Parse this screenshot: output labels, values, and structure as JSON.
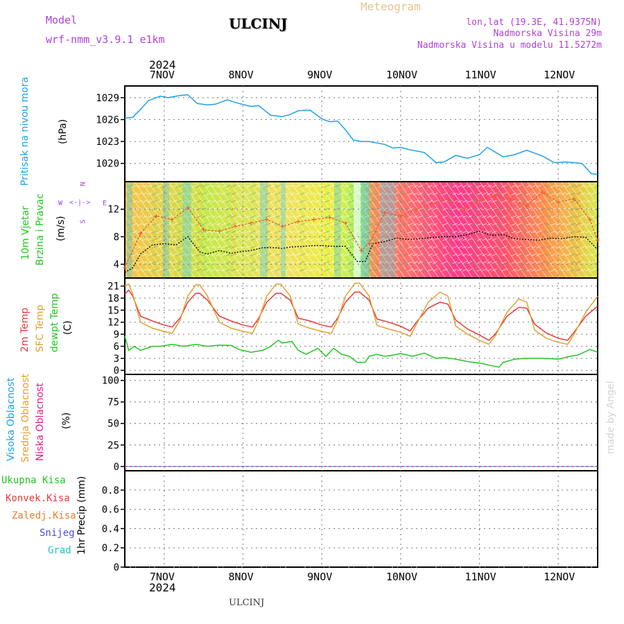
{
  "header": {
    "model_label": "Model",
    "model_name": "wrf-nmm_v3.9.1 e1km",
    "station": "ULCINJ",
    "meteogram_label": "Meteogram",
    "lonlat": "lon,lat (19.3E, 41.9375N)",
    "altitude": "Nadmorska Visina 29m",
    "model_altitude": "Nadmorska Visina u modelu 11.5272m",
    "year_top": "2024",
    "year_bottom": "2024",
    "footer_station": "ULCINJ",
    "watermark": "made by Angel"
  },
  "colors": {
    "pressure": "#1ea0e6",
    "wind_speed": "#000000",
    "gust": "#e85a2a",
    "temp2m": "#e83a3a",
    "sfc_temp": "#e0a030",
    "dewpoint": "#22c522",
    "purple": "#b040d8"
  },
  "panel_labels": {
    "pressure": {
      "title": "Pritisak na nivou mora",
      "unit": "(hPa)"
    },
    "wind": {
      "title1": "10m Vjetar",
      "title2": "Brzina i Pravac",
      "unit": "(m/s)",
      "compass_n": "N",
      "compass_s": "S",
      "compass_w": "W",
      "compass_e": "E"
    },
    "temp": {
      "t1": "2m Temp",
      "t2": "SFC Temp",
      "t3": "dewpt Temp",
      "unit": "(C)"
    },
    "cloud": {
      "c1": "Visoka Oblacnost",
      "c2": "Srednja Oblacnost",
      "c3": "Niska Oblacnost",
      "unit": "(%)"
    },
    "precip": {
      "p1": "Ukupna Kisa",
      "p2": "Konvek.Kisa",
      "p3": "Zaledj.Kisa",
      "p4": "Snijeg",
      "p5": "Grad",
      "unit": "1hr Precip (mm)"
    }
  },
  "chart_data": [
    {
      "type": "line",
      "name": "pressure",
      "x_categories": [
        "7NOV",
        "8NOV",
        "9NOV",
        "10NOV",
        "11NOV",
        "12NOV"
      ],
      "x_range_days": [
        6.5,
        12.5
      ],
      "ylim": [
        1017.5,
        1030.6
      ],
      "yticks": [
        1020,
        1023,
        1026,
        1029
      ],
      "series": [
        {
          "x": [
            6.5,
            6.6,
            6.7,
            6.8,
            6.95,
            7.05,
            7.2,
            7.3,
            7.42,
            7.55,
            7.65,
            7.8,
            7.95,
            8.1,
            8.2,
            8.35,
            8.5,
            8.6,
            8.7,
            8.85,
            9.0,
            9.1,
            9.2,
            9.3,
            9.4,
            9.5,
            9.6,
            9.7,
            9.8,
            9.9,
            10.0,
            10.1,
            10.3,
            10.45,
            10.55,
            10.7,
            10.85,
            11.0,
            11.1,
            11.3,
            11.45,
            11.6,
            11.8,
            11.95,
            12.1,
            12.3,
            12.42,
            12.5
          ],
          "y": [
            1026.2,
            1026.3,
            1027.4,
            1028.6,
            1029.2,
            1029.0,
            1029.3,
            1029.4,
            1028.2,
            1028.0,
            1028.1,
            1028.7,
            1028.2,
            1027.8,
            1027.9,
            1026.6,
            1026.4,
            1026.7,
            1027.2,
            1027.3,
            1026.1,
            1025.7,
            1025.8,
            1024.6,
            1023.2,
            1023.0,
            1023.0,
            1022.8,
            1022.6,
            1022.1,
            1022.2,
            1021.9,
            1021.5,
            1020.1,
            1020.2,
            1021.1,
            1020.7,
            1021.2,
            1022.2,
            1020.9,
            1021.2,
            1021.8,
            1021.0,
            1020.1,
            1020.2,
            1020.0,
            1018.6,
            1018.5
          ]
        }
      ]
    },
    {
      "type": "line",
      "name": "wind",
      "x_range_days": [
        6.5,
        12.5
      ],
      "ylim": [
        2,
        16
      ],
      "yticks": [
        4,
        8,
        12
      ],
      "series": [
        {
          "name": "speed",
          "x": [
            6.5,
            6.6,
            6.7,
            6.85,
            7.0,
            7.15,
            7.3,
            7.45,
            7.55,
            7.7,
            7.85,
            7.95,
            8.1,
            8.25,
            8.4,
            8.5,
            8.6,
            8.75,
            8.9,
            9.0,
            9.15,
            9.3,
            9.45,
            9.55,
            9.65,
            9.8,
            9.95,
            10.1,
            10.25,
            10.4,
            10.55,
            10.7,
            10.85,
            11.0,
            11.15,
            11.3,
            11.45,
            11.6,
            11.75,
            11.9,
            12.05,
            12.2,
            12.35,
            12.5
          ],
          "y": [
            2.8,
            3.5,
            5.5,
            6.8,
            7.0,
            6.8,
            8.0,
            5.8,
            5.5,
            6.0,
            5.6,
            5.8,
            6.0,
            6.4,
            6.4,
            6.3,
            6.5,
            6.6,
            6.7,
            6.7,
            6.6,
            6.6,
            4.4,
            4.4,
            7.0,
            7.3,
            7.8,
            7.6,
            7.7,
            7.9,
            8.0,
            8.0,
            8.3,
            8.8,
            8.2,
            8.3,
            7.7,
            7.6,
            7.5,
            7.8,
            7.7,
            8.0,
            7.9,
            6.1
          ]
        },
        {
          "name": "gust",
          "x": [
            6.5,
            6.7,
            6.9,
            7.1,
            7.3,
            7.5,
            7.7,
            7.9,
            8.1,
            8.3,
            8.5,
            8.7,
            8.9,
            9.1,
            9.3,
            9.5,
            9.6,
            9.8,
            10.0,
            10.2,
            10.4,
            10.6,
            10.8,
            11.0,
            11.2,
            11.4,
            11.6,
            11.8,
            12.0,
            12.2,
            12.4,
            12.5
          ],
          "y": [
            3.5,
            8.5,
            11.0,
            10.5,
            12.2,
            9.0,
            8.8,
            9.5,
            10.0,
            10.5,
            9.5,
            10.2,
            10.5,
            10.8,
            10.0,
            6.0,
            7.0,
            11.5,
            11.0,
            12.0,
            12.8,
            13.5,
            12.0,
            13.2,
            14.0,
            13.5,
            12.5,
            14.5,
            13.0,
            13.5,
            10.5,
            7.5
          ]
        }
      ]
    },
    {
      "type": "line",
      "name": "temperature",
      "x_range_days": [
        6.5,
        12.5
      ],
      "ylim": [
        -1,
        23
      ],
      "yticks": [
        0,
        3,
        6,
        9,
        12,
        15,
        18,
        21
      ],
      "series": [
        {
          "name": "2m",
          "x": [
            6.5,
            6.55,
            6.6,
            6.7,
            6.85,
            7.0,
            7.1,
            7.2,
            7.3,
            7.4,
            7.45,
            7.55,
            7.7,
            7.85,
            8.0,
            8.12,
            8.2,
            8.3,
            8.42,
            8.48,
            8.6,
            8.7,
            8.85,
            9.0,
            9.12,
            9.2,
            9.3,
            9.42,
            9.48,
            9.6,
            9.7,
            9.85,
            10.0,
            10.12,
            10.2,
            10.35,
            10.5,
            10.6,
            10.7,
            10.85,
            11.0,
            11.12,
            11.2,
            11.35,
            11.5,
            11.6,
            11.7,
            11.85,
            12.0,
            12.12,
            12.2,
            12.35,
            12.5
          ],
          "y": [
            19.0,
            20.0,
            18.5,
            13.5,
            12.3,
            11.3,
            10.8,
            13.0,
            17.0,
            19.2,
            19.2,
            17.5,
            13.5,
            12.3,
            11.3,
            10.8,
            13.0,
            17.0,
            19.2,
            19.2,
            17.5,
            13.0,
            12.3,
            11.3,
            10.8,
            13.0,
            17.0,
            19.5,
            19.5,
            17.5,
            12.8,
            12.0,
            11.0,
            9.8,
            12.0,
            15.5,
            17.0,
            16.5,
            12.5,
            10.3,
            8.8,
            7.5,
            9.0,
            13.5,
            15.7,
            15.5,
            11.5,
            9.3,
            8.0,
            7.5,
            9.5,
            13.5,
            16.0
          ]
        },
        {
          "name": "SFC",
          "x": [
            6.5,
            6.55,
            6.6,
            6.7,
            6.85,
            7.0,
            7.1,
            7.2,
            7.3,
            7.4,
            7.45,
            7.55,
            7.7,
            7.85,
            8.0,
            8.12,
            8.2,
            8.3,
            8.42,
            8.48,
            8.6,
            8.7,
            8.85,
            9.0,
            9.12,
            9.2,
            9.3,
            9.42,
            9.48,
            9.6,
            9.7,
            9.85,
            10.0,
            10.12,
            10.2,
            10.35,
            10.5,
            10.6,
            10.7,
            10.85,
            11.0,
            11.12,
            11.2,
            11.35,
            11.5,
            11.6,
            11.7,
            11.85,
            12.0,
            12.12,
            12.2,
            12.35,
            12.5
          ],
          "y": [
            21.0,
            21.5,
            19.0,
            12.0,
            10.5,
            9.7,
            9.2,
            12.5,
            18.5,
            21.3,
            21.3,
            18.5,
            12.0,
            10.5,
            9.7,
            9.2,
            12.5,
            18.5,
            21.5,
            21.5,
            18.5,
            11.5,
            10.5,
            9.7,
            9.2,
            12.5,
            18.5,
            21.7,
            21.7,
            18.5,
            11.2,
            10.3,
            9.5,
            8.5,
            11.5,
            17.0,
            19.5,
            18.5,
            11.0,
            9.0,
            7.5,
            6.5,
            8.5,
            14.5,
            17.8,
            17.0,
            10.0,
            8.0,
            7.0,
            6.5,
            9.0,
            14.5,
            18.5
          ]
        },
        {
          "name": "dewpt",
          "x": [
            6.5,
            6.55,
            6.62,
            6.7,
            6.85,
            6.95,
            7.1,
            7.25,
            7.4,
            7.55,
            7.7,
            7.85,
            7.95,
            8.1,
            8.25,
            8.35,
            8.45,
            8.5,
            8.62,
            8.7,
            8.8,
            8.95,
            9.05,
            9.15,
            9.25,
            9.35,
            9.45,
            9.55,
            9.6,
            9.7,
            9.8,
            9.9,
            10.0,
            10.15,
            10.3,
            10.45,
            10.55,
            10.7,
            10.85,
            11.0,
            11.15,
            11.25,
            11.3,
            11.45,
            11.6,
            11.8,
            12.0,
            12.15,
            12.25,
            12.4,
            12.5
          ],
          "y": [
            8.5,
            5.0,
            6.0,
            5.0,
            6.0,
            6.0,
            6.5,
            6.0,
            6.5,
            6.0,
            6.3,
            6.2,
            5.2,
            4.5,
            5.0,
            6.0,
            7.5,
            6.8,
            7.2,
            5.0,
            4.0,
            5.5,
            3.5,
            5.5,
            4.0,
            3.5,
            2.0,
            2.0,
            3.5,
            4.0,
            3.5,
            3.8,
            4.2,
            3.5,
            4.3,
            3.0,
            3.2,
            2.8,
            2.2,
            1.8,
            1.2,
            0.8,
            2.0,
            2.8,
            3.0,
            3.0,
            2.8,
            3.5,
            3.8,
            5.2,
            4.5
          ]
        }
      ]
    },
    {
      "type": "line",
      "name": "cloud",
      "ylim": [
        -5,
        107
      ],
      "yticks": [
        0,
        25,
        50,
        75,
        100
      ],
      "series": [
        {
          "name": "high",
          "values": [
            0,
            0
          ]
        },
        {
          "name": "mid",
          "values": [
            0,
            0
          ]
        },
        {
          "name": "low",
          "values": [
            0,
            0
          ]
        }
      ]
    },
    {
      "type": "bar",
      "name": "precipitation",
      "ylim": [
        0,
        1.0
      ],
      "yticks": [
        0,
        0.2,
        0.4,
        0.6,
        0.8
      ],
      "values": []
    }
  ]
}
